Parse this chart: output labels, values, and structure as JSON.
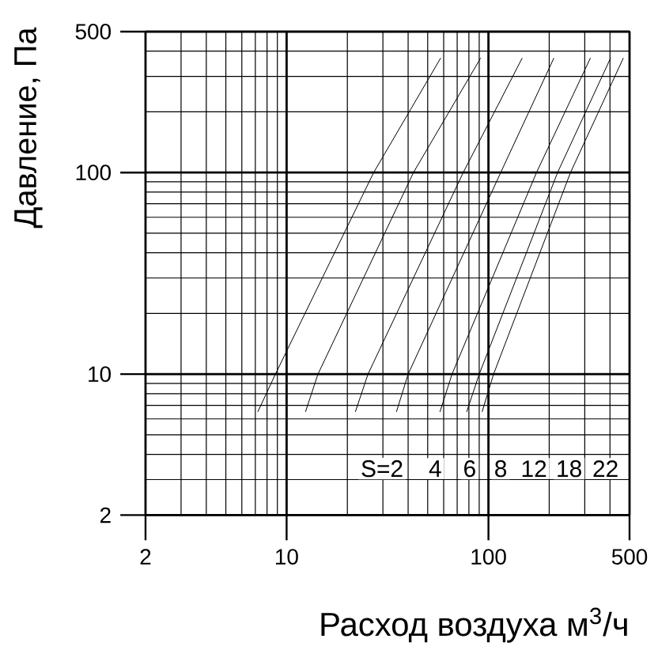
{
  "chart_data": {
    "type": "line",
    "xlabel": "Расход воздуха м$^{3}$/ч",
    "ylabel": "Давление, Па",
    "log": "xy",
    "xlim": [
      2,
      500
    ],
    "ylim": [
      2,
      500
    ],
    "xticks": [
      2,
      10,
      100,
      500
    ],
    "yticks": [
      2,
      10,
      100,
      500
    ],
    "grid": true,
    "marker": "none",
    "line_style": "solid",
    "series": [
      {
        "color": "#000000",
        "x": [
          7.2,
          8.8,
          27,
          58
        ],
        "values": [
          6.5,
          10,
          100,
          370
        ]
      },
      {
        "color": "#000000",
        "x": [
          12.4,
          14.3,
          42.5,
          91.5
        ],
        "values": [
          6.5,
          10,
          100,
          370
        ]
      },
      {
        "color": "#000000",
        "x": [
          21.9,
          25.3,
          75,
          147
        ],
        "values": [
          6.5,
          10,
          100,
          370
        ]
      },
      {
        "color": "#000000",
        "x": [
          35,
          40,
          115,
          211
        ],
        "values": [
          6.5,
          10,
          100,
          370
        ]
      },
      {
        "color": "#000000",
        "x": [
          57.5,
          66,
          173,
          320
        ],
        "values": [
          6.5,
          10,
          100,
          370
        ]
      },
      {
        "color": "#000000",
        "x": [
          78,
          90,
          220,
          403
        ],
        "values": [
          6.5,
          10,
          100,
          370
        ]
      },
      {
        "color": "#000000",
        "x": [
          93,
          106,
          255,
          466
        ],
        "values": [
          6.5,
          10,
          100,
          370
        ]
      }
    ],
    "annotations": [
      {
        "text": "S=2",
        "x": 29.7,
        "y": 3.4
      },
      {
        "text": "4",
        "x": 54.5,
        "y": 3.4
      },
      {
        "text": "6",
        "x": 80.7,
        "y": 3.4
      },
      {
        "text": "8",
        "x": 115,
        "y": 3.4
      },
      {
        "text": "12",
        "x": 168,
        "y": 3.4
      },
      {
        "text": "18",
        "x": 251,
        "y": 3.4
      },
      {
        "text": "22",
        "x": 380,
        "y": 3.4
      }
    ]
  }
}
